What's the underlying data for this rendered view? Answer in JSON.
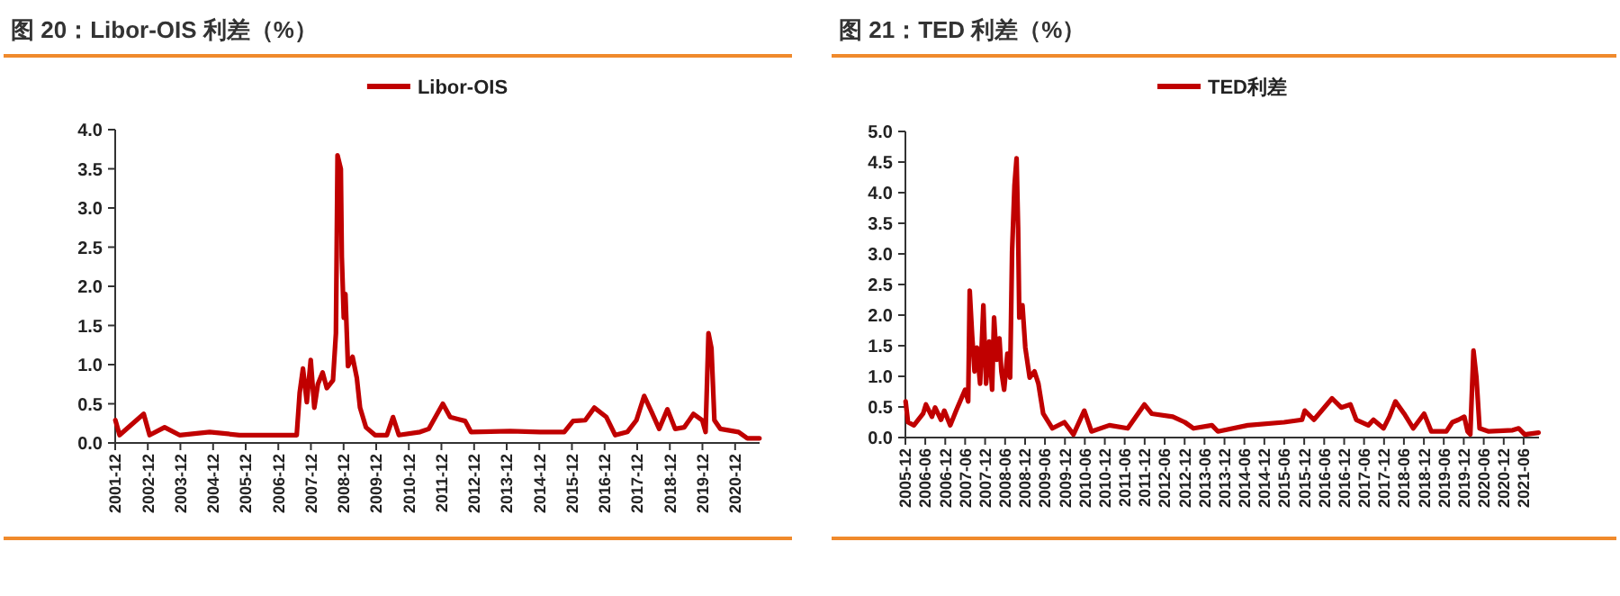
{
  "chart_data": [
    {
      "type": "line",
      "title": "图 20：Libor-OIS 利差（%）",
      "legend": "top",
      "line_style": "solid",
      "xlim": [
        "2001-12",
        "2021-09"
      ],
      "ylim": [
        0,
        4
      ],
      "yticks": [
        {
          "value": 0,
          "label": "0.0"
        },
        {
          "value": 0.5,
          "label": "0.5"
        },
        {
          "value": 1,
          "label": "1.0"
        },
        {
          "value": 1.5,
          "label": "1.5"
        },
        {
          "value": 2,
          "label": "2.0"
        },
        {
          "value": 2.5,
          "label": "2.5"
        },
        {
          "value": 3,
          "label": "3.0"
        },
        {
          "value": 3.5,
          "label": "3.5"
        },
        {
          "value": 4,
          "label": "4.0"
        }
      ],
      "xticks": [
        "2001-12",
        "2002-12",
        "2003-12",
        "2004-12",
        "2005-12",
        "2006-12",
        "2007-12",
        "2008-12",
        "2009-12",
        "2010-12",
        "2011-12",
        "2012-12",
        "2013-12",
        "2014-12",
        "2015-12",
        "2016-12",
        "2017-12",
        "2018-12",
        "2019-12",
        "2020-12"
      ],
      "series": [
        {
          "name": "Libor-OIS",
          "color": "#c00000",
          "x": [
            "2001-12-03",
            "2002-01-19",
            "2002-10-16",
            "2002-12-21",
            "2003-06-07",
            "2003-11-22",
            "2004-10-23",
            "2005-09-24",
            "2006-08-26",
            "2007-06-25",
            "2007-07-28",
            "2007-09-03",
            "2007-10-16",
            "2007-11-29",
            "2008-01-08",
            "2008-02-17",
            "2008-04-10",
            "2008-05-27",
            "2008-08-04",
            "2008-09-06",
            "2008-09-24",
            "2008-10-31",
            "2008-11-11",
            "2008-12-03",
            "2008-12-21",
            "2009-01-19",
            "2009-03-11",
            "2009-04-28",
            "2009-06-03",
            "2009-08-08",
            "2009-11-18",
            "2010-03-30",
            "2010-06-07",
            "2010-08-12",
            "2011-04-06",
            "2011-07-13",
            "2011-12-17",
            "2012-03-08",
            "2012-08-23",
            "2012-10-27",
            "2014-01-08",
            "2014-12-10",
            "2015-09-06",
            "2015-12-14",
            "2016-04-28",
            "2016-08-08",
            "2016-12-21",
            "2017-03-30",
            "2017-08-12",
            "2017-11-22",
            "2018-02-17",
            "2018-05-09",
            "2018-08-04",
            "2018-11-04",
            "2019-01-30",
            "2019-05-12",
            "2019-08-23",
            "2019-11-29",
            "2020-01-05",
            "2020-02-07",
            "2020-03-11",
            "2020-04-13",
            "2020-06-18",
            "2021-01-08",
            "2021-04-17",
            "2021-08-30"
          ],
          "values": [
            0.29,
            0.1,
            0.37,
            0.1,
            0.2,
            0.1,
            0.14,
            0.1,
            0.1,
            0.1,
            0.64,
            0.95,
            0.52,
            1.06,
            0.45,
            0.75,
            0.9,
            0.7,
            0.8,
            1.4,
            3.67,
            3.5,
            2.37,
            1.6,
            1.9,
            0.98,
            1.1,
            0.83,
            0.45,
            0.2,
            0.1,
            0.1,
            0.33,
            0.1,
            0.14,
            0.18,
            0.5,
            0.33,
            0.28,
            0.14,
            0.15,
            0.14,
            0.14,
            0.28,
            0.29,
            0.45,
            0.33,
            0.1,
            0.14,
            0.29,
            0.6,
            0.4,
            0.18,
            0.43,
            0.18,
            0.2,
            0.37,
            0.29,
            0.14,
            1.4,
            1.21,
            0.29,
            0.18,
            0.14,
            0.06,
            0.06
          ]
        }
      ]
    },
    {
      "type": "line",
      "title": "图 21：TED 利差（%）",
      "legend": "top",
      "line_style": "solid",
      "xlim": [
        "2005-12",
        "2021-10-20"
      ],
      "ylim": [
        0,
        5
      ],
      "yticks": [
        {
          "value": 0,
          "label": "0.0"
        },
        {
          "value": 0.5,
          "label": "0.5"
        },
        {
          "value": 1,
          "label": "1.0"
        },
        {
          "value": 1.5,
          "label": "1.5"
        },
        {
          "value": 2,
          "label": "2.0"
        },
        {
          "value": 2.5,
          "label": "2.5"
        },
        {
          "value": 3,
          "label": "3.0"
        },
        {
          "value": 3.5,
          "label": "3.5"
        },
        {
          "value": 4,
          "label": "4.0"
        },
        {
          "value": 4.5,
          "label": "4.5"
        },
        {
          "value": 5,
          "label": "5.0"
        }
      ],
      "xticks": [
        "2005-12",
        "2006-06",
        "2006-12",
        "2007-06",
        "2007-12",
        "2008-06",
        "2008-12",
        "2009-06",
        "2009-12",
        "2010-06",
        "2010-12",
        "2011-06",
        "2011-12",
        "2012-06",
        "2012-12",
        "2013-06",
        "2013-12",
        "2014-06",
        "2014-12",
        "2015-06",
        "2015-12",
        "2016-06",
        "2016-12",
        "2017-06",
        "2017-12",
        "2018-06",
        "2018-12",
        "2019-06",
        "2019-12",
        "2020-06",
        "2020-12",
        "2021-06"
      ],
      "series": [
        {
          "name": "TED利差",
          "color": "#c00000",
          "x": [
            "2005-12-03",
            "2005-12-25",
            "2006-02-17",
            "2006-05-12",
            "2006-06-07",
            "2006-08-01",
            "2006-08-30",
            "2006-10-23",
            "2006-11-22",
            "2007-01-16",
            "2007-03-11",
            "2007-05-31",
            "2007-06-29",
            "2007-07-13",
            "2007-08-04",
            "2007-08-26",
            "2007-09-17",
            "2007-10-16",
            "2007-11-15",
            "2007-12-10",
            "2008-01-08",
            "2008-02-03",
            "2008-02-21",
            "2008-03-15",
            "2008-04-10",
            "2008-04-28",
            "2008-05-23",
            "2008-06-22",
            "2008-07-17",
            "2008-08-04",
            "2008-08-26",
            "2008-09-14",
            "2008-09-28",
            "2008-10-09",
            "2008-11-07",
            "2008-12-03",
            "2009-01-12",
            "2009-02-25",
            "2009-04-02",
            "2009-05-16",
            "2009-08-08",
            "2009-11-26",
            "2010-02-17",
            "2010-05-27",
            "2010-08-01",
            "2011-01-12",
            "2011-06-29",
            "2011-11-29",
            "2012-02-03",
            "2012-08-15",
            "2012-12-03",
            "2013-02-21",
            "2013-08-08",
            "2013-10-02",
            "2014-07-03",
            "2015-05-31",
            "2015-11-11",
            "2015-12-06",
            "2016-02-28",
            "2016-08-12",
            "2016-11-04",
            "2017-01-27",
            "2017-03-22",
            "2017-07-10",
            "2017-08-26",
            "2017-11-26",
            "2018-01-19",
            "2018-03-15",
            "2018-06-03",
            "2018-08-26",
            "2018-12-03",
            "2019-02-07",
            "2019-06-25",
            "2019-08-19",
            "2019-10-13",
            "2019-12-06",
            "2020-01-05",
            "2020-01-30",
            "2020-02-28",
            "2020-03-26",
            "2020-04-24",
            "2020-07-17",
            "2021-02-21",
            "2021-04-17",
            "2021-06-11",
            "2021-10-16"
          ],
          "values": [
            0.59,
            0.25,
            0.2,
            0.39,
            0.54,
            0.34,
            0.49,
            0.29,
            0.44,
            0.2,
            0.44,
            0.78,
            0.59,
            2.4,
            1.67,
            1.08,
            1.47,
            0.88,
            2.16,
            0.88,
            1.57,
            0.78,
            1.96,
            1.27,
            1.62,
            1.08,
            0.78,
            1.37,
            0.98,
            3.04,
            4.12,
            4.56,
            3.43,
            1.96,
            2.16,
            1.47,
            0.98,
            1.08,
            0.88,
            0.39,
            0.15,
            0.25,
            0.05,
            0.44,
            0.1,
            0.2,
            0.15,
            0.54,
            0.39,
            0.34,
            0.25,
            0.15,
            0.2,
            0.1,
            0.2,
            0.25,
            0.29,
            0.44,
            0.29,
            0.64,
            0.49,
            0.54,
            0.29,
            0.2,
            0.29,
            0.15,
            0.34,
            0.59,
            0.39,
            0.15,
            0.39,
            0.1,
            0.1,
            0.25,
            0.29,
            0.34,
            0.1,
            0.05,
            1.42,
            0.98,
            0.15,
            0.1,
            0.12,
            0.15,
            0.05,
            0.08
          ]
        }
      ]
    }
  ]
}
